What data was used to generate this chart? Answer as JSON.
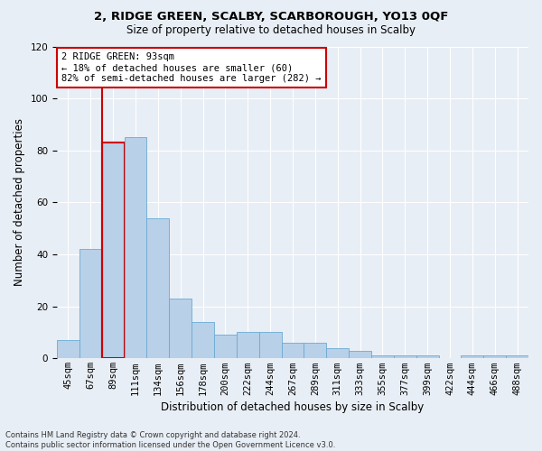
{
  "title1": "2, RIDGE GREEN, SCALBY, SCARBOROUGH, YO13 0QF",
  "title2": "Size of property relative to detached houses in Scalby",
  "xlabel": "Distribution of detached houses by size in Scalby",
  "ylabel": "Number of detached properties",
  "footnote": "Contains HM Land Registry data © Crown copyright and database right 2024.\nContains public sector information licensed under the Open Government Licence v3.0.",
  "bar_labels": [
    "45sqm",
    "67sqm",
    "89sqm",
    "111sqm",
    "134sqm",
    "156sqm",
    "178sqm",
    "200sqm",
    "222sqm",
    "244sqm",
    "267sqm",
    "289sqm",
    "311sqm",
    "333sqm",
    "355sqm",
    "377sqm",
    "399sqm",
    "422sqm",
    "444sqm",
    "466sqm",
    "488sqm"
  ],
  "bar_heights": [
    7,
    42,
    83,
    85,
    54,
    23,
    14,
    9,
    10,
    10,
    6,
    6,
    4,
    3,
    1,
    1,
    1,
    0,
    1,
    1,
    1
  ],
  "bar_color": "#b8d0e8",
  "bar_edge_color": "#6aaad4",
  "highlight_bar_index": 2,
  "highlight_edge_color": "#cc0000",
  "property_line_color": "#cc0000",
  "ylim": [
    0,
    120
  ],
  "yticks": [
    0,
    20,
    40,
    60,
    80,
    100,
    120
  ],
  "annotation_text": "2 RIDGE GREEN: 93sqm\n← 18% of detached houses are smaller (60)\n82% of semi-detached houses are larger (282) →",
  "annotation_box_facecolor": "#ffffff",
  "annotation_box_edgecolor": "#cc0000",
  "bg_color": "#e8eef5",
  "grid_color": "#ffffff",
  "title1_fontsize": 9.5,
  "title2_fontsize": 8.5,
  "xlabel_fontsize": 8.5,
  "ylabel_fontsize": 8.5,
  "tick_fontsize": 7.5,
  "annotation_fontsize": 7.5,
  "footnote_fontsize": 6.0
}
